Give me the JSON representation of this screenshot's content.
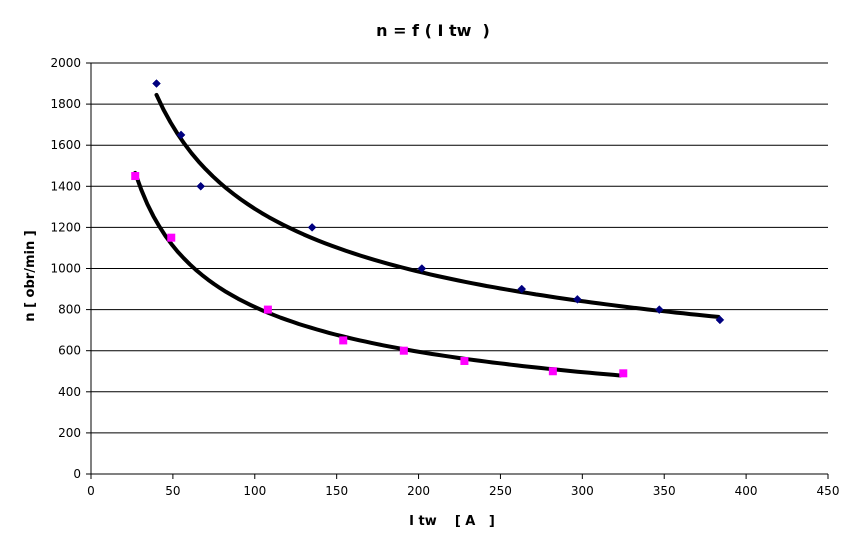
{
  "chart_data": {
    "type": "scatter",
    "title": "n = f ( I tw  )",
    "xlabel": "I tw    [ A   ]",
    "ylabel": "n [ obr/min ]",
    "xlim": [
      0,
      450
    ],
    "ylim": [
      0,
      2000
    ],
    "xticks": [
      0,
      50,
      100,
      150,
      200,
      250,
      300,
      350,
      400,
      450
    ],
    "yticks": [
      0,
      200,
      400,
      600,
      800,
      1000,
      1200,
      1400,
      1600,
      1800,
      2000
    ],
    "grid": "horizontal",
    "legend": "none",
    "series": [
      {
        "marker": "diamond",
        "color": "#00007f",
        "x": [
          40,
          55,
          67,
          135,
          202,
          263,
          297,
          347,
          384
        ],
        "y": [
          1900,
          1650,
          1400,
          1200,
          1000,
          900,
          850,
          800,
          750
        ]
      },
      {
        "marker": "square",
        "color": "#ff00ff",
        "x": [
          27,
          49,
          108,
          154,
          191,
          228,
          282,
          325
        ],
        "y": [
          1450,
          1150,
          800,
          650,
          600,
          550,
          500,
          490
        ]
      }
    ],
    "trendlines": [
      {
        "type": "power",
        "color": "#000000",
        "x_range": [
          40,
          383
        ],
        "x_ref": 40,
        "y_ref": 1845,
        "exponent": -0.39
      },
      {
        "type": "power",
        "color": "#000000",
        "x_range": [
          27,
          323
        ],
        "x_ref": 27,
        "y_ref": 1465,
        "exponent": -0.45
      }
    ]
  }
}
